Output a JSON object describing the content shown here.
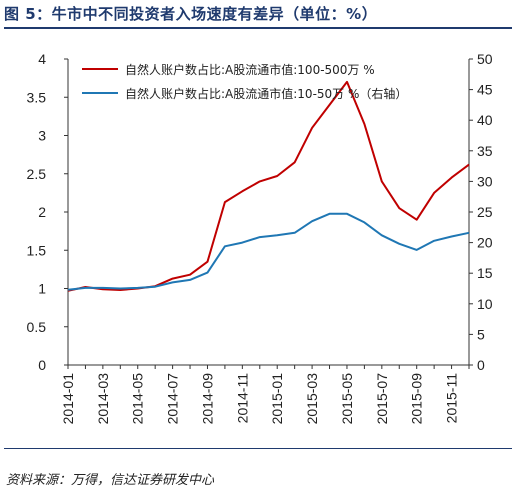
{
  "title": "图 5：牛市中不同投资者入场速度有差异（单位：%）",
  "source": "资料来源：万得，信达证券研发中心",
  "colors": {
    "series1": "#c00000",
    "series2": "#1f77b4",
    "title": "#1f3a6e"
  },
  "chart_data": {
    "type": "line",
    "x": [
      "2014-01",
      "2014-02",
      "2014-03",
      "2014-04",
      "2014-05",
      "2014-06",
      "2014-07",
      "2014-08",
      "2014-09",
      "2014-10",
      "2014-11",
      "2014-12",
      "2015-01",
      "2015-02",
      "2015-03",
      "2015-04",
      "2015-05",
      "2015-06",
      "2015-07",
      "2015-08",
      "2015-09",
      "2015-10",
      "2015-11",
      "2015-12"
    ],
    "x_tick_labels": [
      "2014-01",
      "2014-03",
      "2014-05",
      "2014-07",
      "2014-09",
      "2014-11",
      "2015-01",
      "2015-03",
      "2015-05",
      "2015-07",
      "2015-09",
      "2015-11"
    ],
    "series": [
      {
        "name": "自然人账户数占比:A股流通市值:100-500万 %",
        "axis": "left",
        "values": [
          0.97,
          1.02,
          0.99,
          0.98,
          1.0,
          1.03,
          1.13,
          1.18,
          1.35,
          2.13,
          2.27,
          2.4,
          2.47,
          2.65,
          3.1,
          3.4,
          3.7,
          3.15,
          2.4,
          2.05,
          1.9,
          2.25,
          2.45,
          2.62
        ]
      },
      {
        "name": "自然人账户数占比:A股流通市值:10-50万 %（右轴）",
        "axis": "right",
        "values": [
          12.3,
          12.6,
          12.6,
          12.5,
          12.6,
          12.8,
          13.5,
          13.9,
          15.1,
          19.4,
          20.0,
          20.9,
          21.2,
          21.6,
          23.5,
          24.7,
          24.7,
          23.3,
          21.2,
          19.8,
          18.8,
          20.3,
          21.0,
          21.6
        ]
      }
    ],
    "y_left": {
      "ylim": [
        0,
        4
      ],
      "ticks": [
        "0",
        "0.5",
        "1",
        "1.5",
        "2",
        "2.5",
        "3",
        "3.5",
        "4"
      ]
    },
    "y_right": {
      "ylim": [
        0,
        50
      ],
      "ticks": [
        "0",
        "5",
        "10",
        "15",
        "20",
        "25",
        "30",
        "35",
        "40",
        "45",
        "50"
      ]
    },
    "legend_placement": "top-left",
    "grid": false
  }
}
